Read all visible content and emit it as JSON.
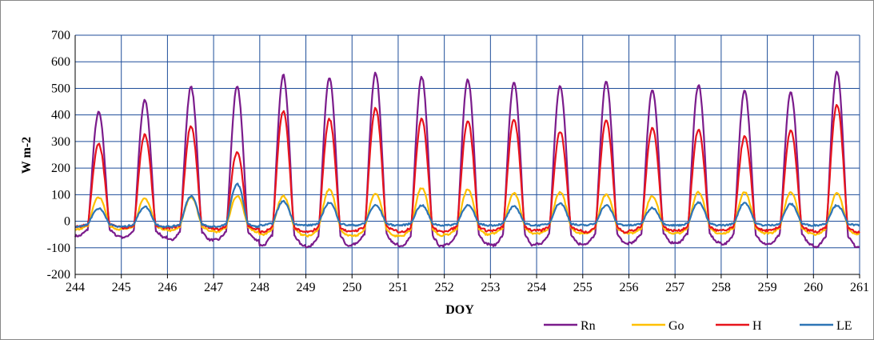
{
  "chart_data": {
    "type": "line",
    "title": "",
    "xlabel": "DOY",
    "ylabel": "W m-2",
    "xlim": [
      244,
      261
    ],
    "ylim": [
      -200,
      700
    ],
    "xticks": [
      244,
      245,
      246,
      247,
      248,
      249,
      250,
      251,
      252,
      253,
      254,
      255,
      256,
      257,
      258,
      259,
      260,
      261
    ],
    "yticks": [
      -200,
      -100,
      0,
      100,
      200,
      300,
      400,
      500,
      600,
      700
    ],
    "grid": true,
    "legend": "bottom-right",
    "series": [
      {
        "name": "Rn",
        "color": "#7B1C8C",
        "daily_peaks": [
          410,
          455,
          505,
          505,
          550,
          540,
          558,
          543,
          533,
          520,
          510,
          525,
          495,
          513,
          490,
          485,
          563
        ],
        "night_min": [
          -55,
          -60,
          -70,
          -70,
          -90,
          -95,
          -85,
          -95,
          -85,
          -90,
          -85,
          -85,
          -80,
          -80,
          -85,
          -85,
          -95
        ]
      },
      {
        "name": "Go",
        "color": "#FFC000",
        "daily_peaks": [
          90,
          85,
          90,
          95,
          95,
          120,
          105,
          125,
          120,
          105,
          110,
          100,
          95,
          110,
          110,
          110,
          105
        ],
        "night_min": [
          -30,
          -30,
          -35,
          -40,
          -50,
          -55,
          -55,
          -55,
          -50,
          -45,
          -45,
          -45,
          -45,
          -45,
          -45,
          -45,
          -50
        ]
      },
      {
        "name": "H",
        "color": "#E8141C",
        "daily_peaks": [
          290,
          325,
          358,
          260,
          415,
          385,
          425,
          388,
          378,
          383,
          338,
          380,
          353,
          345,
          318,
          340,
          438
        ],
        "night_min": [
          -20,
          -25,
          -25,
          -30,
          -40,
          -40,
          -35,
          -40,
          -35,
          -35,
          -35,
          -40,
          -35,
          -35,
          -35,
          -35,
          -40
        ]
      },
      {
        "name": "LE",
        "color": "#2E75B6",
        "daily_peaks": [
          48,
          55,
          95,
          140,
          75,
          70,
          60,
          60,
          60,
          55,
          68,
          60,
          50,
          70,
          70,
          65,
          60
        ],
        "night_min": [
          -20,
          -20,
          -20,
          -20,
          -15,
          -15,
          -15,
          -15,
          -15,
          -15,
          -15,
          -15,
          -15,
          -15,
          -15,
          -15,
          -15
        ]
      }
    ]
  }
}
